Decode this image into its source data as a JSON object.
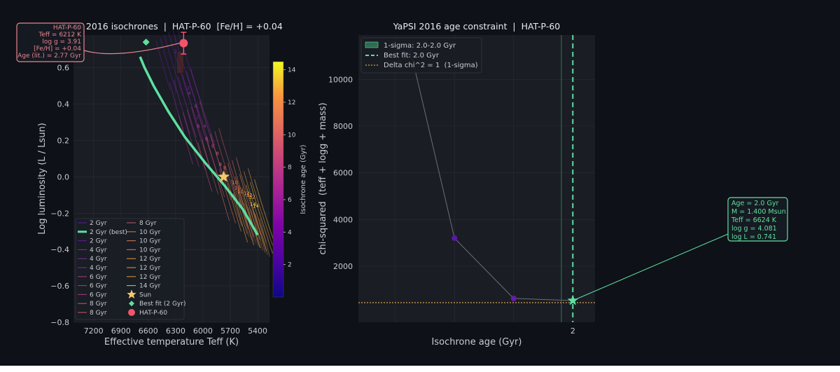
{
  "colors": {
    "figure_bg": "#0e1117",
    "axes_bg": "#1a1d24",
    "grid": "#2a2e37",
    "text": "#c9ccd1",
    "best_fit": "#5ee0a0",
    "target": "#f2546a",
    "sun": "#f5c96a",
    "chi_line": "#6b6f78",
    "delta_line": "#d4a24a"
  },
  "chart_data": [
    {
      "type": "line",
      "title": "YaPSI 2016 isochrones  |  HAT-P-60  [Fe/H] = +0.04",
      "xlabel": "Effective temperature  Teff (K)",
      "ylabel": "Log luminosity  (L / Lsun)",
      "x_inverted": true,
      "xlim": [
        7420,
        5270
      ],
      "ylim": [
        -0.8,
        0.78
      ],
      "xticks": [
        7200,
        6900,
        6600,
        6300,
        6000,
        5700,
        5400
      ],
      "yticks": [
        -0.8,
        -0.6,
        -0.4,
        -0.2,
        0.0,
        0.2,
        0.4,
        0.6
      ],
      "ytick_labels": [
        "−0.8",
        "−0.6",
        "−0.4",
        "−0.2",
        "0.0",
        "0.2",
        "0.4",
        "0.6"
      ],
      "colorbar": {
        "label": "Isochrone age (Gyr)",
        "range": [
          0,
          14.5
        ],
        "ticks": [
          2,
          4,
          6,
          8,
          10,
          12,
          14
        ]
      },
      "isochrones": [
        {
          "age": 2,
          "labels": [
            "2",
            "2",
            "2"
          ],
          "x": [
            6300,
            6160,
            6060
          ],
          "y": [
            0.68,
            0.48,
            0.32
          ],
          "color": "#6a1aa8"
        },
        {
          "age": 4,
          "labels": [
            "4",
            "4",
            "4"
          ],
          "x": [
            6150,
            6080,
            5980
          ],
          "y": [
            0.45,
            0.38,
            0.27
          ],
          "color": "#8c2aa8"
        },
        {
          "age": 6,
          "labels": [
            "6",
            "6",
            "6"
          ],
          "x": [
            6050,
            5960,
            5890
          ],
          "y": [
            0.27,
            0.2,
            0.16
          ],
          "color": "#b03b90"
        },
        {
          "age": 8,
          "labels": [
            "8",
            "8",
            "8"
          ],
          "x": [
            5840,
            5810,
            5760
          ],
          "y": [
            0.12,
            0.06,
            0.04
          ],
          "color": "#d45a72"
        },
        {
          "age": 10,
          "labels": [
            "10",
            "10",
            "10"
          ],
          "x": [
            5650,
            5620,
            5590
          ],
          "y": [
            -0.04,
            -0.07,
            -0.09
          ],
          "color": "#eb7d55"
        },
        {
          "age": 12,
          "labels": [
            "12",
            "12",
            "12"
          ],
          "x": [
            5520,
            5490,
            5460
          ],
          "y": [
            -0.1,
            -0.11,
            -0.12
          ],
          "color": "#f5a03e"
        },
        {
          "age": 14,
          "labels": [
            "14",
            "14"
          ],
          "x": [
            5450,
            5420
          ],
          "y": [
            -0.16,
            -0.17
          ],
          "color": "#f6c845"
        }
      ],
      "best_isochrone": {
        "name": "2 Gyr (best)",
        "x": [
          6690,
          6640,
          6540,
          6380,
          6200,
          5980,
          5760,
          5560,
          5400
        ],
        "y": [
          0.66,
          0.6,
          0.5,
          0.36,
          0.22,
          0.08,
          -0.05,
          -0.18,
          -0.32
        ]
      },
      "sun": {
        "name": "Sun",
        "teff": 5772,
        "logL": 0.0
      },
      "best_fit_point": {
        "name": "Best fit (2 Gyr)",
        "teff": 6624,
        "logL": 0.741
      },
      "target": {
        "name": "HAT-P-60",
        "teff": 6212,
        "logL": 0.735,
        "err": 0.06
      },
      "legend_col1": [
        "2 Gyr",
        "2 Gyr (best)",
        "2 Gyr",
        "4 Gyr",
        "4 Gyr",
        "4 Gyr",
        "6 Gyr",
        "6 Gyr",
        "6 Gyr",
        "8 Gyr",
        "8 Gyr"
      ],
      "legend_col2": [
        "8 Gyr",
        "10 Gyr",
        "10 Gyr",
        "10 Gyr",
        "12 Gyr",
        "12 Gyr",
        "12 Gyr",
        "14 Gyr",
        "Sun",
        "Best fit (2 Gyr)",
        "HAT-P-60"
      ],
      "annotation": [
        "HAT-P-60",
        "Teff = 6212 K",
        "log g = 3.91",
        "[Fe/H] = +0.04",
        "Age (lit.) = 2.77 Gyr"
      ]
    },
    {
      "type": "line",
      "title": "YaPSI 2016 age constraint  |  HAT-P-60",
      "xlabel": "Isochrone age  (Gyr)",
      "ylabel": "chi-squared  (teff + logg + mass)",
      "xlim": [
        -0.9,
        2.3
      ],
      "ylim": [
        -400,
        11900
      ],
      "xticks": [
        2
      ],
      "yticks": [
        2000,
        4000,
        6000,
        8000,
        10000
      ],
      "points": [
        {
          "x": -0.2,
          "y": 11300
        },
        {
          "x": 0.4,
          "y": 3200
        },
        {
          "x": 1.2,
          "y": 620
        },
        {
          "x": 2.0,
          "y": 530
        }
      ],
      "best_age": 2.0,
      "best_chi2": 530,
      "delta_chi2_level": 530,
      "legend": [
        "1-sigma: 2.0-2.0 Gyr",
        "Best fit: 2.0 Gyr",
        "Delta chi^2 = 1  (1-sigma)"
      ],
      "annotation": [
        "Age = 2.0 Gyr",
        "M = 1.400 Msun",
        "Teff = 6624 K",
        "log g = 4.081",
        "log L = 0.741"
      ]
    }
  ]
}
